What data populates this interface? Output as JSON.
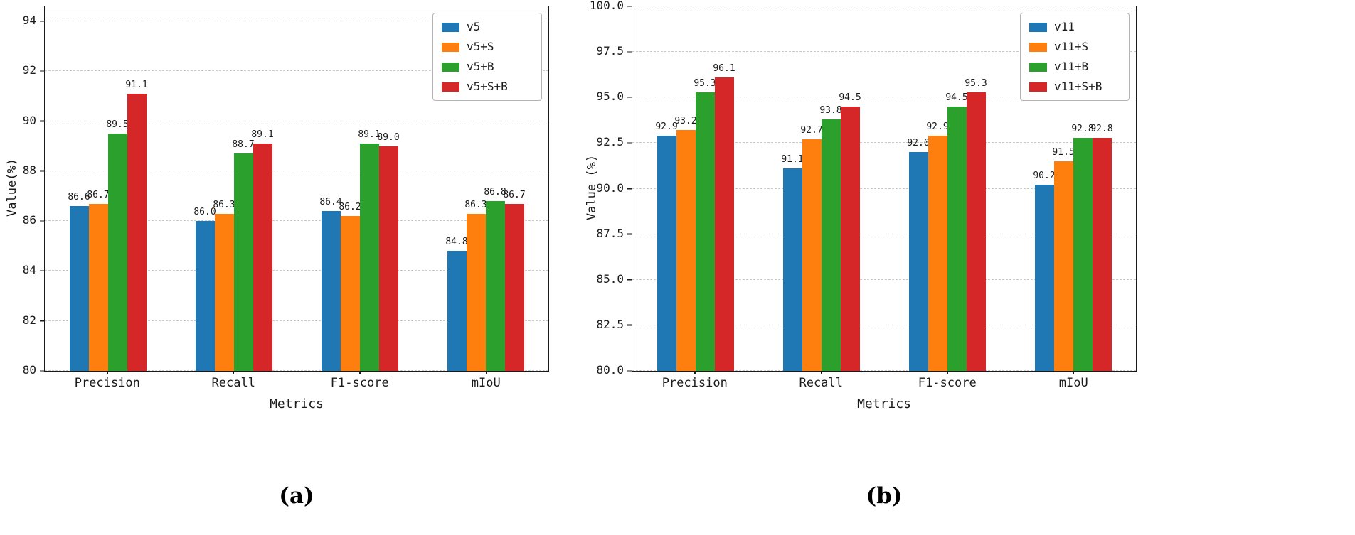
{
  "figure": {
    "background": "#ffffff",
    "axis_color": "#1a1a1a",
    "grid_color": "#c8c8c8"
  },
  "captions": {
    "a": "(a)",
    "b": "(b)"
  },
  "chart_data": [
    {
      "id": "a",
      "type": "bar",
      "title": "",
      "xlabel": "Metrics",
      "ylabel": "Value(%)",
      "categories": [
        "Precision",
        "Recall",
        "F1-score",
        "mIoU"
      ],
      "series": [
        {
          "name": "v5",
          "color": "#1f77b4",
          "values": [
            86.6,
            86.0,
            86.4,
            84.8
          ]
        },
        {
          "name": "v5+S",
          "color": "#ff7f0e",
          "values": [
            86.7,
            86.3,
            86.2,
            86.3
          ]
        },
        {
          "name": "v5+B",
          "color": "#2ca02c",
          "values": [
            89.5,
            88.7,
            89.1,
            86.8
          ]
        },
        {
          "name": "v5+S+B",
          "color": "#d62728",
          "values": [
            91.1,
            89.1,
            89.0,
            86.7
          ]
        }
      ],
      "ylim": [
        80,
        94.6
      ],
      "yticks": [
        80,
        82,
        84,
        86,
        88,
        90,
        92,
        94
      ],
      "ytick_labels": [
        "80",
        "82",
        "84",
        "86",
        "88",
        "90",
        "92",
        "94"
      ],
      "grid": true,
      "grid_style": "dashed",
      "legend_position": "upper right",
      "bar_value_labels": true,
      "value_label_decimals": 1
    },
    {
      "id": "b",
      "type": "bar",
      "title": "",
      "xlabel": "Metrics",
      "ylabel": "Value (%)",
      "categories": [
        "Precision",
        "Recall",
        "F1-score",
        "mIoU"
      ],
      "series": [
        {
          "name": "v11",
          "color": "#1f77b4",
          "values": [
            92.9,
            91.1,
            92.0,
            90.2
          ]
        },
        {
          "name": "v11+S",
          "color": "#ff7f0e",
          "values": [
            93.2,
            92.7,
            92.9,
            91.5
          ]
        },
        {
          "name": "v11+B",
          "color": "#2ca02c",
          "values": [
            95.3,
            93.8,
            94.5,
            92.8
          ]
        },
        {
          "name": "v11+S+B",
          "color": "#d62728",
          "values": [
            96.1,
            94.5,
            95.3,
            92.8
          ]
        }
      ],
      "ylim": [
        80,
        100
      ],
      "yticks": [
        80,
        82.5,
        85,
        87.5,
        90,
        92.5,
        95,
        97.5,
        100
      ],
      "ytick_labels": [
        "80.0",
        "82.5",
        "85.0",
        "87.5",
        "90.0",
        "92.5",
        "95.0",
        "97.5",
        "100.0"
      ],
      "grid": true,
      "grid_style": "dashed",
      "legend_position": "upper right",
      "bar_value_labels": true,
      "value_label_decimals": 1
    }
  ]
}
